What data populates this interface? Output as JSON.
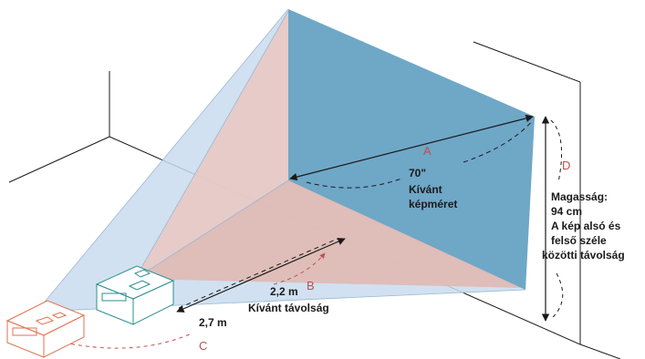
{
  "labels": {
    "a": "A",
    "b": "B",
    "c": "C",
    "d": "D"
  },
  "diagonal": {
    "size": "70\"",
    "line1": "Kívánt",
    "line2": "képméret"
  },
  "distance_near": "2,2 m",
  "distance_far": "2,7 m",
  "distance_caption": "Kívánt távolság",
  "height": {
    "line1": "Magasság:",
    "line2": "94 cm",
    "line3": "A kép alsó és",
    "line4": "felső széle",
    "line5": "közötti távolság"
  },
  "colors": {
    "screen_large": "#6fa7c7",
    "screen_small": "#e8c9c4",
    "beam_blue": "#c9dcee",
    "projector_near": "#2c8f8f",
    "projector_far": "#e07050",
    "arrow": "#1a1a1a",
    "label_red": "#c0504d"
  }
}
